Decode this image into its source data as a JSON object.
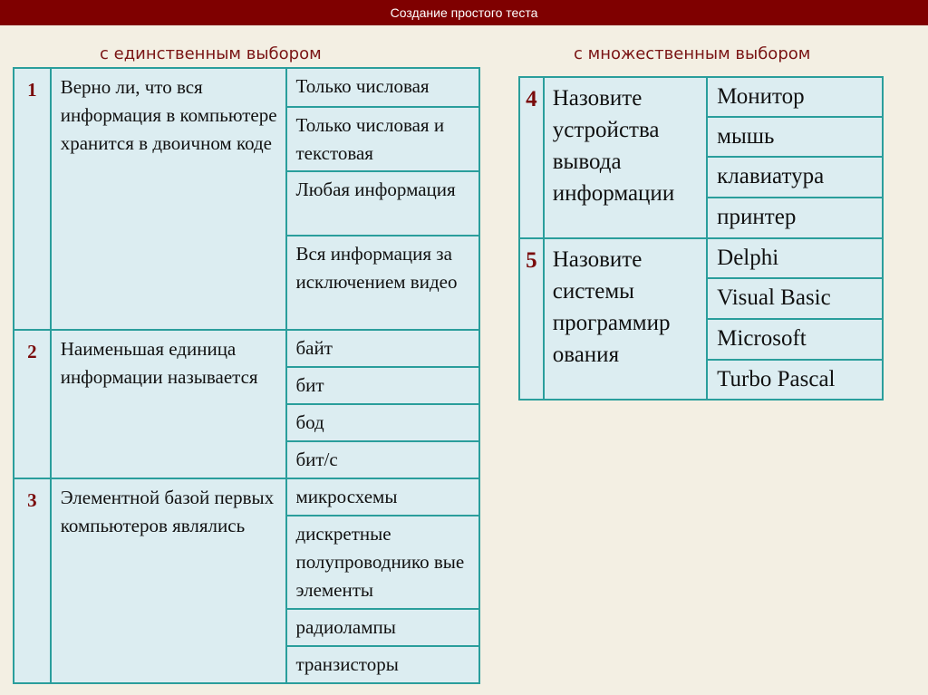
{
  "header": {
    "title": "Создание простого теста"
  },
  "single": {
    "heading": "с единственным выбором",
    "questions": [
      {
        "num": "1",
        "text": " Верно ли, что вся информация в компьютере хранится в двоичном коде",
        "answers": [
          "Только числовая",
          "Только числовая и текстовая",
          "Любая информация",
          "Вся информация за исключением видео"
        ]
      },
      {
        "num": "2",
        "text": "Наименьшая единица информации называется",
        "answers": [
          "байт",
          "бит",
          "бод",
          "бит/с"
        ]
      },
      {
        "num": "3",
        "text": "Элементной базой первых компьютеров являлись",
        "answers": [
          "микросхемы",
          "дискретные полупроводнико вые элементы",
          "радиолампы",
          "транзисторы"
        ]
      }
    ]
  },
  "multiple": {
    "heading": "с множественным выбором",
    "questions": [
      {
        "num": "4",
        "text": "Назовите устройства вывода информации",
        "answers": [
          "Монитор",
          "мышь",
          "клавиатура",
          "принтер"
        ]
      },
      {
        "num": "5",
        "text": "Назовите системы программир ования",
        "answers": [
          "Delphi",
          "Visual Basic",
          "Microsoft",
          "Turbo Pascal"
        ]
      }
    ]
  }
}
